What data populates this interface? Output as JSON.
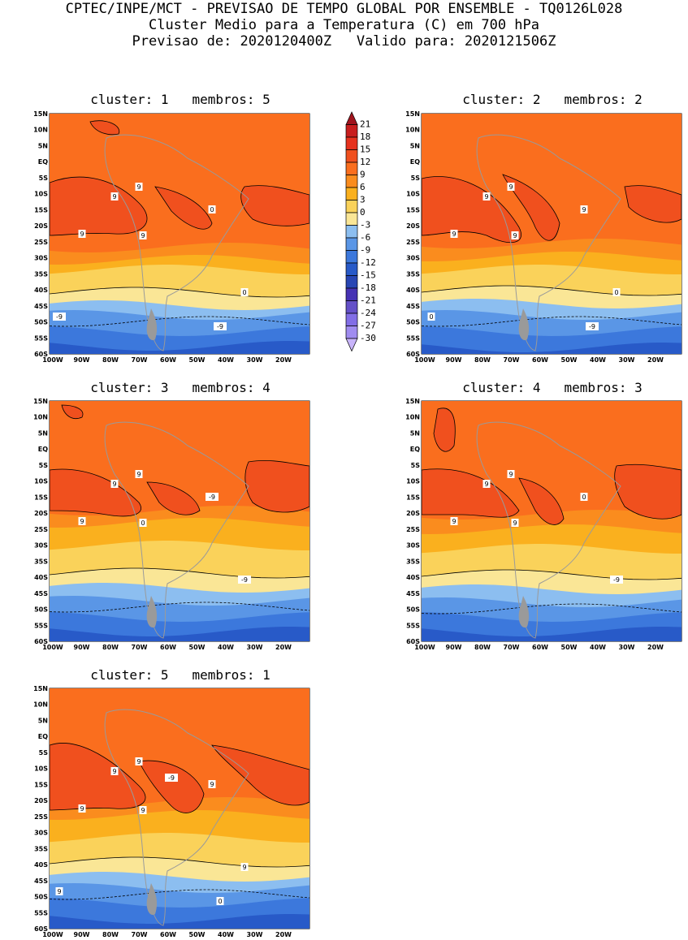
{
  "header": {
    "line1": "CPTEC/INPE/MCT - PREVISAO DE TEMPO GLOBAL POR ENSEMBLE - TQ0126L028",
    "line2": "Cluster Medio para a Temperatura (C) em 700 hPa",
    "line3": "Previsao de: 2020120400Z   Valido para: 2020121506Z"
  },
  "lat_labels": [
    "15N",
    "10N",
    "5N",
    "EQ",
    "5S",
    "10S",
    "15S",
    "20S",
    "25S",
    "30S",
    "35S",
    "40S",
    "45S",
    "50S",
    "55S",
    "60S"
  ],
  "lon_labels": [
    "100W",
    "90W",
    "80W",
    "70W",
    "60W",
    "50W",
    "40W",
    "30W",
    "20W"
  ],
  "colorbar": {
    "labels": [
      "21",
      "18",
      "15",
      "12",
      "9",
      "6",
      "3",
      "0",
      "-3",
      "-6",
      "-9",
      "-12",
      "-15",
      "-18",
      "-21",
      "-24",
      "-27",
      "-30"
    ],
    "colors": [
      "#a0141e",
      "#c81e1e",
      "#e6321e",
      "#f0501e",
      "#fa6e1e",
      "#fa8c1e",
      "#fab01e",
      "#fad25a",
      "#fae696",
      "#8cbef0",
      "#5a96e6",
      "#3c78dc",
      "#285ac8",
      "#2846b4",
      "#4632b4",
      "#6450c8",
      "#826ee6",
      "#a08cf0",
      "#c8b4fa"
    ]
  },
  "clusters": [
    {
      "title": "cluster: 1   membros: 5",
      "contour_labels": [
        "9",
        "9",
        "9",
        "9",
        "0",
        "0",
        "-9",
        "-9"
      ]
    },
    {
      "title": "cluster: 2   membros: 2",
      "contour_labels": [
        "9",
        "9",
        "9",
        "9",
        "9",
        "0",
        "0",
        "-9"
      ]
    },
    {
      "title": "cluster: 3   membros: 4",
      "contour_labels": [
        "9",
        "9",
        "9",
        "0",
        "-9",
        "-9"
      ]
    },
    {
      "title": "cluster: 4   membros: 3",
      "contour_labels": [
        "9",
        "9",
        "9",
        "9",
        "0",
        "-9"
      ]
    },
    {
      "title": "cluster: 5   membros: 1",
      "contour_labels": [
        "9",
        "9",
        "9",
        "9",
        "9",
        "9",
        "9",
        "0",
        "-9"
      ]
    }
  ]
}
